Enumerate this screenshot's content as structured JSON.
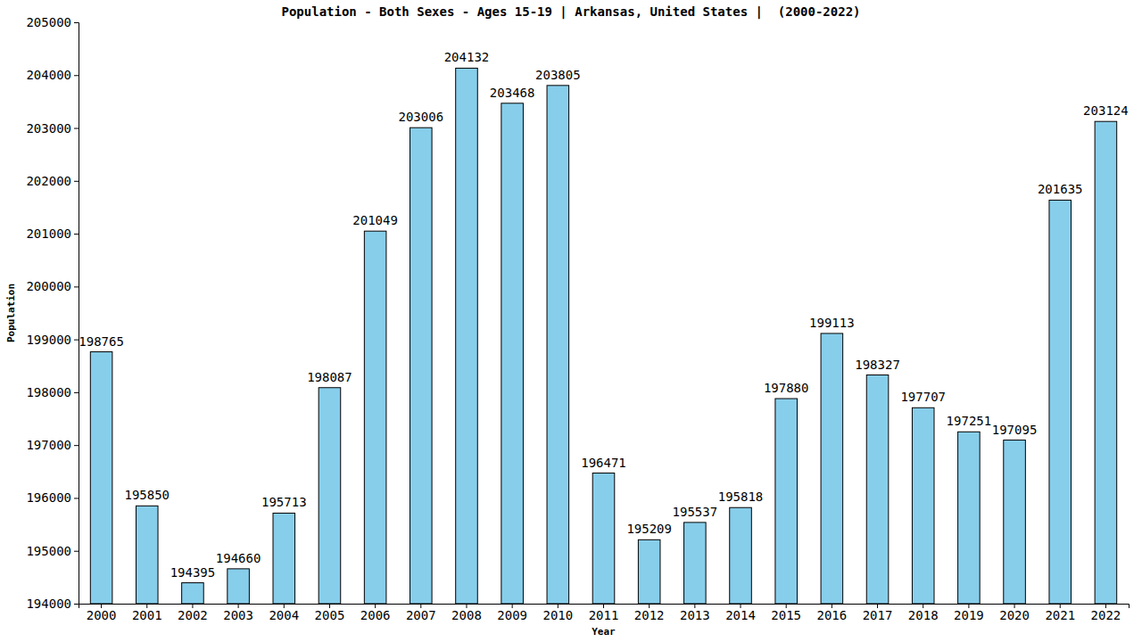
{
  "chart_data": {
    "type": "bar",
    "title": "Population - Both Sexes - Ages 15-19 | Arkansas, United States |  (2000-2022)",
    "x_label": "Year",
    "y_label": "Population",
    "categories": [
      "2000",
      "2001",
      "2002",
      "2003",
      "2004",
      "2005",
      "2006",
      "2007",
      "2008",
      "2009",
      "2010",
      "2011",
      "2012",
      "2013",
      "2014",
      "2015",
      "2016",
      "2017",
      "2018",
      "2019",
      "2020",
      "2021",
      "2022"
    ],
    "values": [
      198765,
      195850,
      194395,
      194660,
      195713,
      198087,
      201049,
      203006,
      204132,
      203468,
      203805,
      196471,
      195209,
      195537,
      195818,
      197880,
      199113,
      198327,
      197707,
      197251,
      197095,
      201635,
      203124
    ],
    "color": "#87ceeb",
    "ylim": [
      194000,
      205000
    ],
    "yticks": [
      194000,
      195000,
      196000,
      197000,
      198000,
      199000,
      200000,
      201000,
      202000,
      203000,
      204000,
      205000
    ],
    "grid": false,
    "data_labels": true
  }
}
